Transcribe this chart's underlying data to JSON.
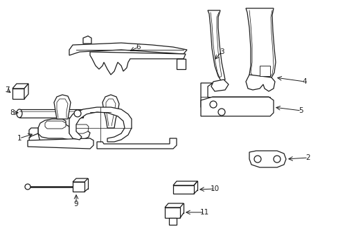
{
  "background_color": "#ffffff",
  "line_color": "#1a1a1a",
  "line_width": 0.9,
  "label_fontsize": 7.5,
  "fig_width": 4.89,
  "fig_height": 3.6,
  "dpi": 100
}
